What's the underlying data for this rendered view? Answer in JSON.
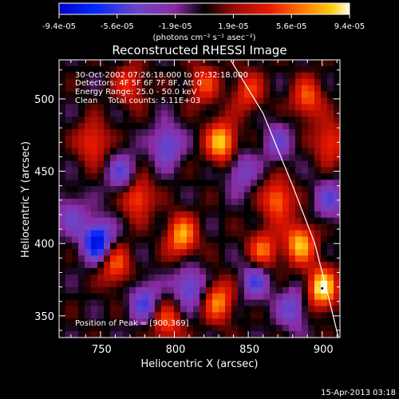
{
  "colorbar": {
    "tick_labels": [
      "-9.4e-05",
      "-5.6e-05",
      "-1.9e-05",
      "1.9e-05",
      "5.6e-05",
      "9.4e-05"
    ],
    "unit_label": "(photons cm⁻² s⁻¹ asec⁻²)",
    "range": [
      -9.4e-05,
      9.4e-05
    ]
  },
  "chart_data": {
    "type": "heatmap",
    "title": "Reconstructed RHESSI Image",
    "xlabel": "Heliocentric X (arcsec)",
    "ylabel": "Heliocentric Y (arcsec)",
    "xlim": [
      722,
      912
    ],
    "ylim": [
      335,
      527
    ],
    "x_ticks": [
      750,
      800,
      850,
      900
    ],
    "y_ticks": [
      350,
      400,
      450,
      500
    ],
    "info_lines": [
      "30-Oct-2002 07:26:18.000 to 07:32:18.000",
      "Detectors: 4F 5F 6F 7F 8F, Att 0",
      "Energy Range: 25.0 - 50.0 keV",
      "Clean    Total counts: 5.11E+03"
    ],
    "peak_label": "Position of Peak = [900,369]",
    "peak": [
      900,
      369
    ],
    "limb_arc": [
      [
        838,
        527
      ],
      [
        860,
        490
      ],
      [
        880,
        440
      ],
      [
        895,
        400
      ],
      [
        905,
        360
      ],
      [
        911,
        335
      ]
    ],
    "grid": false
  },
  "footer": {
    "date": "15-Apr-2013 03:18"
  }
}
